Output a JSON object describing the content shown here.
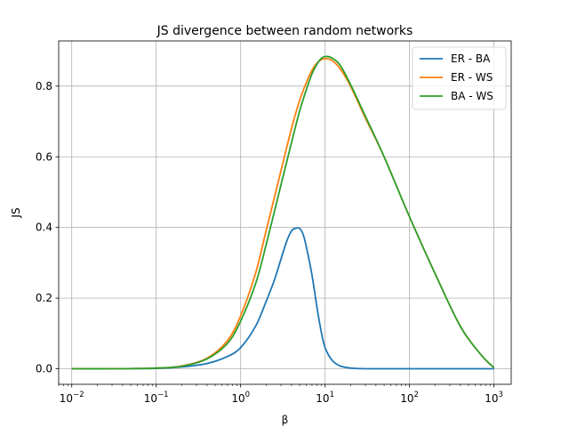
{
  "chart_data": {
    "type": "line",
    "title": "JS divergence between random networks",
    "xlabel": "β",
    "ylabel": "JS",
    "xscale": "log",
    "xlim": [
      0.007,
      1600
    ],
    "ylim": [
      -0.044,
      0.928
    ],
    "grid": true,
    "legend_position": "top-right",
    "x_tick_labels": [
      {
        "base": "10",
        "exp": "−2"
      },
      {
        "base": "10",
        "exp": "−1"
      },
      {
        "base": "10",
        "exp": "0"
      },
      {
        "base": "10",
        "exp": "1"
      },
      {
        "base": "10",
        "exp": "2"
      },
      {
        "base": "10",
        "exp": "3"
      }
    ],
    "y_tick_labels": [
      "0.0",
      "0.2",
      "0.4",
      "0.6",
      "0.8"
    ],
    "series": [
      {
        "name": "ER - BA",
        "color": "#1f77b4",
        "x": [
          0.01,
          0.03,
          0.1,
          0.2,
          0.4,
          0.7,
          1.0,
          1.5,
          2.0,
          2.5,
          3.0,
          3.5,
          4.0,
          4.5,
          5.0,
          5.5,
          6.0,
          7.0,
          8.0,
          9.0,
          10,
          12,
          15,
          20,
          30,
          100,
          1000
        ],
        "y": [
          0.0,
          0.0,
          0.001,
          0.005,
          0.015,
          0.035,
          0.06,
          0.12,
          0.19,
          0.25,
          0.31,
          0.36,
          0.39,
          0.398,
          0.397,
          0.38,
          0.345,
          0.265,
          0.175,
          0.105,
          0.06,
          0.025,
          0.008,
          0.002,
          0.0,
          0.0,
          0.0
        ]
      },
      {
        "name": "ER - WS",
        "color": "#ff7f0e",
        "x": [
          0.01,
          0.03,
          0.1,
          0.2,
          0.4,
          0.7,
          1.0,
          1.5,
          2.0,
          3.0,
          4.0,
          5.0,
          6.0,
          7.0,
          8.0,
          9.0,
          10,
          12,
          15,
          20,
          30,
          50,
          100,
          200,
          400,
          700,
          1000
        ],
        "y": [
          0.0,
          0.0,
          0.002,
          0.008,
          0.03,
          0.08,
          0.15,
          0.27,
          0.39,
          0.56,
          0.68,
          0.76,
          0.81,
          0.845,
          0.865,
          0.875,
          0.878,
          0.873,
          0.85,
          0.8,
          0.71,
          0.6,
          0.43,
          0.27,
          0.12,
          0.04,
          0.003
        ]
      },
      {
        "name": "BA - WS",
        "color": "#2ca02c",
        "x": [
          0.01,
          0.03,
          0.1,
          0.2,
          0.4,
          0.7,
          1.0,
          1.5,
          2.0,
          3.0,
          4.0,
          5.0,
          6.0,
          7.0,
          8.0,
          9.0,
          10,
          12,
          15,
          20,
          30,
          50,
          100,
          200,
          400,
          700,
          1000
        ],
        "y": [
          0.0,
          0.0,
          0.002,
          0.007,
          0.028,
          0.072,
          0.135,
          0.24,
          0.35,
          0.52,
          0.64,
          0.73,
          0.79,
          0.835,
          0.862,
          0.878,
          0.884,
          0.88,
          0.86,
          0.805,
          0.715,
          0.6,
          0.43,
          0.27,
          0.12,
          0.04,
          0.003
        ]
      }
    ]
  }
}
